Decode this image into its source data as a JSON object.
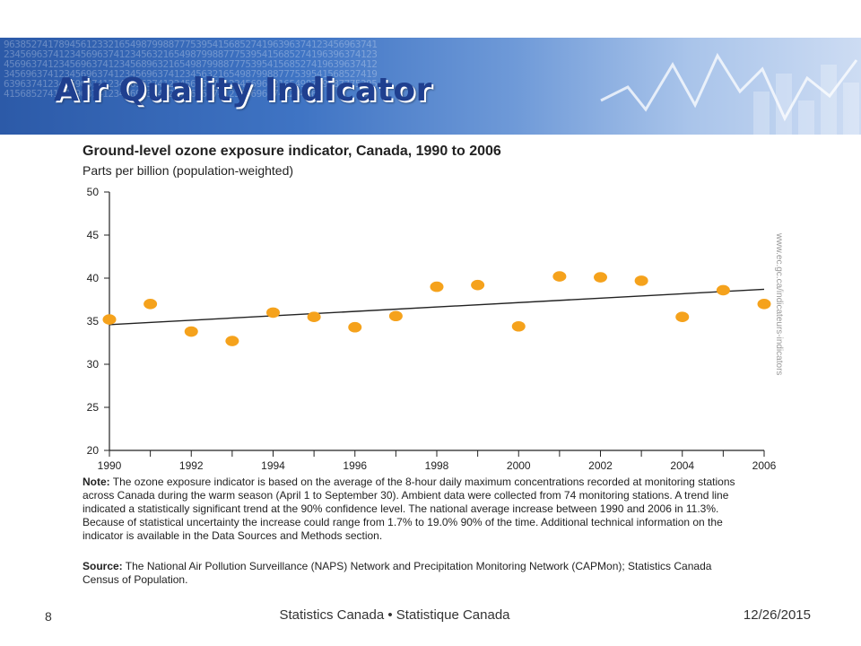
{
  "slide": {
    "title": "Air Quality Indicator",
    "number": "8",
    "footer": "Statistics Canada • Statistique Canada",
    "date": "12/26/2015"
  },
  "banner": {
    "digits": "9638527417894561233216549879988777539541568527419639637412345696374123456963741234569637412345632165498799887775395415685274196396374123456963741234569637412345689632165498799887775395415685274196396374123456963741234569637412345696374123456321654987998877753954156852741963963741234569637412345696374123456963741234569632165498799887775395415685274196396374123456963741234569637412345696374123456",
    "colors": {
      "dark": "#2c5aa8",
      "light": "#cddcf3"
    }
  },
  "chart_data": {
    "type": "scatter",
    "title": "Ground-level ozone exposure indicator, Canada, 1990 to 2006",
    "subtitle": "Parts per billion (population-weighted)",
    "xlabel": "",
    "ylabel": "",
    "xlim": [
      1990,
      2006
    ],
    "ylim": [
      20,
      50
    ],
    "x_ticks": [
      1990,
      1991,
      1992,
      1993,
      1994,
      1995,
      1996,
      1997,
      1998,
      1999,
      2000,
      2001,
      2002,
      2003,
      2004,
      2005,
      2006
    ],
    "x_tick_labels": [
      "1990",
      "1992",
      "1994",
      "1996",
      "1998",
      "2000",
      "2002",
      "2004",
      "2006"
    ],
    "y_ticks": [
      20,
      25,
      30,
      35,
      40,
      45,
      50
    ],
    "grid": false,
    "series": [
      {
        "x": [
          1990,
          1991,
          1992,
          1993,
          1994,
          1995,
          1996,
          1997,
          1998,
          1999,
          2000,
          2001,
          2002,
          2003,
          2004,
          2005,
          2006
        ],
        "y": [
          35.2,
          37.0,
          33.8,
          32.7,
          36.0,
          35.5,
          34.3,
          35.6,
          39.0,
          39.2,
          34.4,
          40.2,
          40.1,
          39.7,
          35.5,
          38.6,
          37.0
        ],
        "color": "#f5a21c"
      }
    ],
    "trend_line": {
      "x": [
        1990,
        2006
      ],
      "y": [
        34.6,
        38.7
      ],
      "color": "#222222"
    },
    "side_url": "www.ec.gc.ca/indicateurs-indicators"
  },
  "note": {
    "label": "Note:",
    "text": " The ozone exposure indicator is based on the average of the 8-hour daily maximum concentrations recorded at monitoring stations across Canada during the warm season (April 1 to September 30). Ambient data were collected from 74 monitoring stations. A trend line indicated a statistically significant trend at the 90% confidence level. The national average increase between 1990 and 2006 in 11.3%. Because of statistical uncertainty the increase could range from 1.7% to 19.0% 90% of the time. Additional technical information on the indicator is available in the Data Sources and Methods section."
  },
  "source": {
    "label": "Source:",
    "text": " The National Air Pollution Surveillance (NAPS) Network and Precipitation Monitoring Network (CAPMon); Statistics Canada Census of Population."
  }
}
